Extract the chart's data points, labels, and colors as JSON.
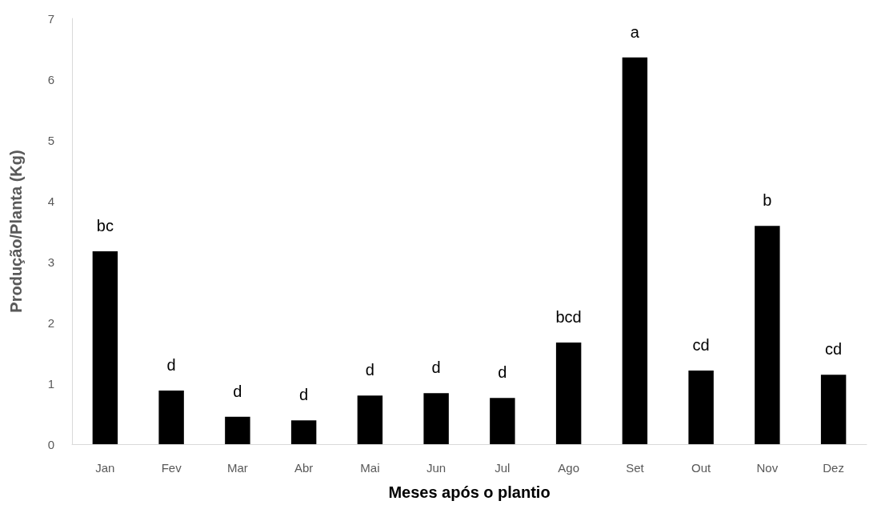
{
  "chart_data": {
    "type": "bar",
    "xlabel": "Meses após o plantio",
    "ylabel": "Produção/Planta (Kg)",
    "categories": [
      "Jan",
      "Fev",
      "Mar",
      "Abr",
      "Mai",
      "Jun",
      "Jul",
      "Ago",
      "Set",
      "Out",
      "Nov",
      "Dez"
    ],
    "values": [
      3.17,
      0.88,
      0.45,
      0.39,
      0.8,
      0.84,
      0.76,
      1.67,
      6.36,
      1.21,
      3.59,
      1.14
    ],
    "color": "#000000",
    "ylim": [
      0,
      7
    ],
    "yticks": [
      0,
      1,
      2,
      3,
      4,
      5,
      6,
      7
    ],
    "grid": false,
    "annotations": [
      {
        "text": "bc",
        "x": "Jan",
        "y": 3.17
      },
      {
        "text": "d",
        "x": "Fev",
        "y": 0.88
      },
      {
        "text": "d",
        "x": "Mar",
        "y": 0.45
      },
      {
        "text": "d",
        "x": "Abr",
        "y": 0.39
      },
      {
        "text": "d",
        "x": "Mai",
        "y": 0.8
      },
      {
        "text": "d",
        "x": "Jun",
        "y": 0.84
      },
      {
        "text": "d",
        "x": "Jul",
        "y": 0.76
      },
      {
        "text": "bcd",
        "x": "Ago",
        "y": 1.67
      },
      {
        "text": "a",
        "x": "Set",
        "y": 6.36
      },
      {
        "text": "cd",
        "x": "Out",
        "y": 1.21
      },
      {
        "text": "b",
        "x": "Nov",
        "y": 3.59
      },
      {
        "text": "cd",
        "x": "Dez",
        "y": 1.14
      }
    ]
  }
}
